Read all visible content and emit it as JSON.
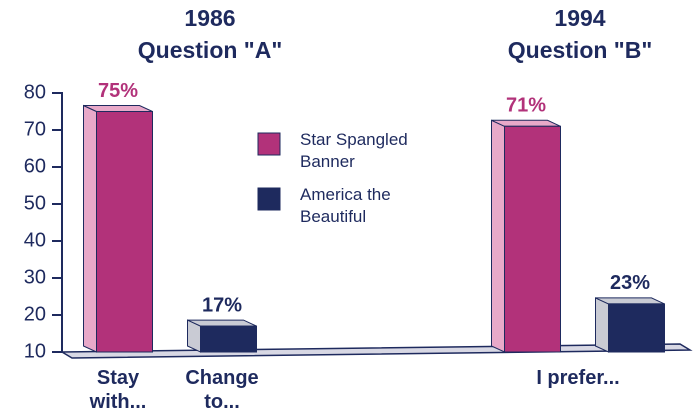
{
  "chart_data": {
    "type": "bar",
    "titles": [
      {
        "year": "1986",
        "question": "Question \"A\""
      },
      {
        "year": "1994",
        "question": "Question \"B\""
      }
    ],
    "categories": [
      "Stay with...",
      "Change to...",
      "I prefer..."
    ],
    "series": [
      {
        "name": "Star Spangled Banner",
        "color": "#b2327a",
        "values": [
          75,
          null,
          71
        ],
        "value_labels": [
          "75%",
          null,
          "71%"
        ]
      },
      {
        "name": "America the Beautiful",
        "color": "#1e2a5e",
        "values": [
          null,
          17,
          23
        ],
        "value_labels": [
          null,
          "17%",
          "23%"
        ]
      }
    ],
    "ylim": [
      10,
      80
    ],
    "yticks": [
      10,
      20,
      30,
      40,
      50,
      60,
      70,
      80
    ],
    "legend": "top-center"
  }
}
